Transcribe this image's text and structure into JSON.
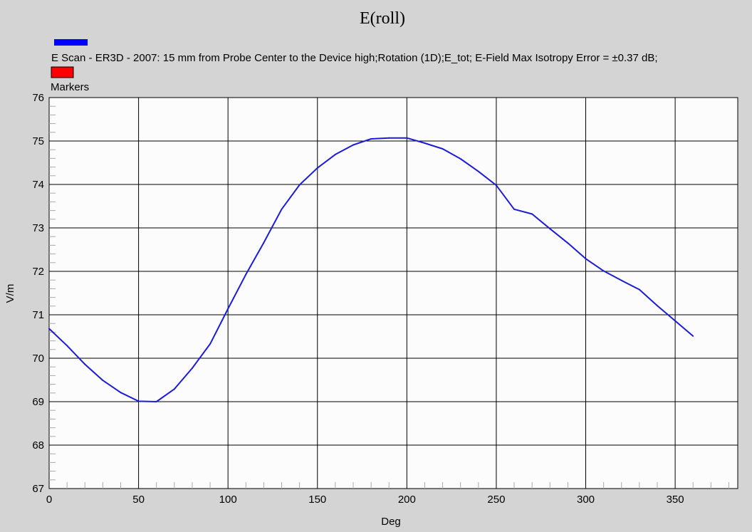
{
  "chart_data": {
    "type": "line",
    "title": "E(roll)",
    "xlabel": "Deg",
    "ylabel": "V/m",
    "xlim": [
      0,
      385
    ],
    "ylim": [
      67,
      76
    ],
    "xticks": [
      0,
      50,
      100,
      150,
      200,
      250,
      300,
      350
    ],
    "yticks": [
      67,
      68,
      69,
      70,
      71,
      72,
      73,
      74,
      75,
      76
    ],
    "x_tick_labels": [
      "0",
      "50",
      "100",
      "150",
      "200",
      "250",
      "300",
      "350"
    ],
    "y_tick_labels": [
      "67",
      "68",
      "69",
      "70",
      "71",
      "72",
      "73",
      "74",
      "75",
      "76"
    ],
    "grid": true,
    "legend_position": "top-left",
    "legend": [
      {
        "label": "E Scan - ER3D - 2007: 15 mm from Probe Center to the Device high;Rotation (1D);E_tot; E-Field Max Isotropy Error = ±0.37 dB;",
        "color": "#0000ff"
      },
      {
        "label": "Markers",
        "color": "#ff0000"
      }
    ],
    "series": [
      {
        "name": "E Scan - ER3D - 2007: 15 mm from Probe Center to the Device high;Rotation (1D);E_tot; E-Field Max Isotropy Error = ±0.37 dB;",
        "color": "#1c1cd8",
        "x": [
          0,
          10,
          20,
          30,
          40,
          50,
          60,
          70,
          80,
          90,
          100,
          110,
          120,
          130,
          140,
          150,
          160,
          170,
          180,
          190,
          200,
          210,
          220,
          230,
          240,
          250,
          260,
          270,
          280,
          290,
          300,
          310,
          320,
          330,
          340,
          350,
          360
        ],
        "y": [
          70.68,
          70.29,
          69.86,
          69.49,
          69.21,
          69.01,
          69.0,
          69.29,
          69.77,
          70.33,
          71.14,
          71.93,
          72.66,
          73.43,
          73.99,
          74.38,
          74.69,
          74.91,
          75.05,
          75.07,
          75.07,
          74.95,
          74.82,
          74.59,
          74.3,
          73.98,
          73.43,
          73.32,
          72.98,
          72.65,
          72.29,
          72.01,
          71.79,
          71.58,
          71.21,
          70.86,
          70.51
        ]
      }
    ]
  }
}
